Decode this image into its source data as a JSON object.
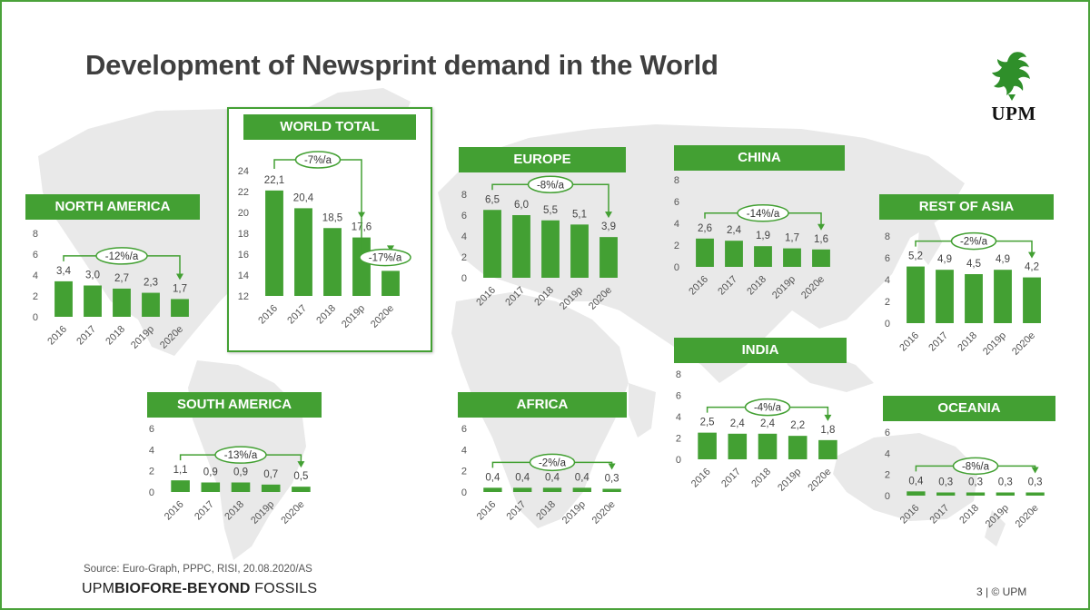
{
  "slide": {
    "title": "Development of Newsprint demand in the World",
    "logo_text": "UPM",
    "source": "Source: Euro-Graph, PPPC, RISI, 20.08.2020/AS",
    "brand_prefix": "UPM",
    "brand_bold": "BIOFORE",
    "brand_suffix": "-BEYOND",
    "brand_tail": " FOSSILS",
    "page_label": "3  |  © UPM"
  },
  "colors": {
    "green": "#43a033",
    "map_gray": "#e6e6e6",
    "text": "#3f3f3f"
  },
  "chart_data": [
    {
      "id": "north-america",
      "type": "bar",
      "title": "NORTH AMERICA",
      "categories": [
        "2016",
        "2017",
        "2018",
        "2019p",
        "2020e"
      ],
      "values": [
        3.4,
        3.0,
        2.7,
        2.3,
        1.7
      ],
      "labels": [
        "3,4",
        "3,0",
        "2,7",
        "2,3",
        "1,7"
      ],
      "yticks": [
        "0",
        "2",
        "4",
        "6",
        "8"
      ],
      "ylim": [
        0,
        8
      ],
      "annotations": [
        {
          "text": "-12%/a",
          "from": 0,
          "to": 4
        }
      ]
    },
    {
      "id": "world-total",
      "type": "bar",
      "title": "WORLD TOTAL",
      "categories": [
        "2016",
        "2017",
        "2018",
        "2019p",
        "2020e"
      ],
      "values": [
        22.1,
        20.4,
        18.5,
        17.6,
        14.4
      ],
      "labels": [
        "22,1",
        "20,4",
        "18,5",
        "17,6",
        "14,4"
      ],
      "yticks": [
        "12",
        "14",
        "16",
        "18",
        "20",
        "22",
        "24"
      ],
      "ylim": [
        12,
        24
      ],
      "annotations": [
        {
          "text": "-7%/a",
          "from": 0,
          "to": 3
        },
        {
          "text": "-17%/a",
          "from": 3,
          "to": 4
        }
      ]
    },
    {
      "id": "europe",
      "type": "bar",
      "title": "EUROPE",
      "categories": [
        "2016",
        "2017",
        "2018",
        "2019p",
        "2020e"
      ],
      "values": [
        6.5,
        6.0,
        5.5,
        5.1,
        3.9
      ],
      "labels": [
        "6,5",
        "6,0",
        "5,5",
        "5,1",
        "3,9"
      ],
      "yticks": [
        "0",
        "2",
        "4",
        "6",
        "8"
      ],
      "ylim": [
        0,
        8
      ],
      "annotations": [
        {
          "text": "-8%/a",
          "from": 0,
          "to": 4
        }
      ]
    },
    {
      "id": "china",
      "type": "bar",
      "title": "CHINA",
      "categories": [
        "2016",
        "2017",
        "2018",
        "2019p",
        "2020e"
      ],
      "values": [
        2.6,
        2.4,
        1.9,
        1.7,
        1.6
      ],
      "labels": [
        "2,6",
        "2,4",
        "1,9",
        "1,7",
        "1,6"
      ],
      "yticks": [
        "0",
        "2",
        "4",
        "6",
        "8"
      ],
      "ylim": [
        0,
        8
      ],
      "annotations": [
        {
          "text": "-14%/a",
          "from": 0,
          "to": 4
        }
      ]
    },
    {
      "id": "rest-of-asia",
      "type": "bar",
      "title": "REST OF ASIA",
      "categories": [
        "2016",
        "2017",
        "2018",
        "2019p",
        "2020e"
      ],
      "values": [
        5.2,
        4.9,
        4.5,
        4.9,
        4.2
      ],
      "labels": [
        "5,2",
        "4,9",
        "4,5",
        "4,9",
        "4,2"
      ],
      "yticks": [
        "0",
        "2",
        "4",
        "6",
        "8"
      ],
      "ylim": [
        0,
        8
      ],
      "annotations": [
        {
          "text": "-2%/a",
          "from": 0,
          "to": 4
        }
      ]
    },
    {
      "id": "south-america",
      "type": "bar",
      "title": "SOUTH AMERICA",
      "categories": [
        "2016",
        "2017",
        "2018",
        "2019p",
        "2020e"
      ],
      "values": [
        1.1,
        0.9,
        0.9,
        0.7,
        0.5
      ],
      "labels": [
        "1,1",
        "0,9",
        "0,9",
        "0,7",
        "0,5"
      ],
      "yticks": [
        "0",
        "2",
        "4",
        "6"
      ],
      "ylim": [
        0,
        6
      ],
      "annotations": [
        {
          "text": "-13%/a",
          "from": 0,
          "to": 4
        }
      ]
    },
    {
      "id": "africa",
      "type": "bar",
      "title": "AFRICA",
      "categories": [
        "2016",
        "2017",
        "2018",
        "2019p",
        "2020e"
      ],
      "values": [
        0.4,
        0.4,
        0.4,
        0.4,
        0.3
      ],
      "labels": [
        "0,4",
        "0,4",
        "0,4",
        "0,4",
        "0,3"
      ],
      "yticks": [
        "0",
        "2",
        "4",
        "6"
      ],
      "ylim": [
        0,
        6
      ],
      "annotations": [
        {
          "text": "-2%/a",
          "from": 0,
          "to": 4
        }
      ]
    },
    {
      "id": "india",
      "type": "bar",
      "title": "INDIA",
      "categories": [
        "2016",
        "2017",
        "2018",
        "2019p",
        "2020e"
      ],
      "values": [
        2.5,
        2.4,
        2.4,
        2.2,
        1.8
      ],
      "labels": [
        "2,5",
        "2,4",
        "2,4",
        "2,2",
        "1,8"
      ],
      "yticks": [
        "0",
        "2",
        "4",
        "6",
        "8"
      ],
      "ylim": [
        0,
        8
      ],
      "annotations": [
        {
          "text": "-4%/a",
          "from": 0,
          "to": 4
        }
      ]
    },
    {
      "id": "oceania",
      "type": "bar",
      "title": "OCEANIA",
      "categories": [
        "2016",
        "2017",
        "2018",
        "2019p",
        "2020e"
      ],
      "values": [
        0.4,
        0.3,
        0.3,
        0.3,
        0.3
      ],
      "labels": [
        "0,4",
        "0,3",
        "0,3",
        "0,3",
        "0,3"
      ],
      "yticks": [
        "0",
        "2",
        "4",
        "6"
      ],
      "ylim": [
        0,
        6
      ],
      "annotations": [
        {
          "text": "-8%/a",
          "from": 0,
          "to": 4
        }
      ]
    }
  ]
}
